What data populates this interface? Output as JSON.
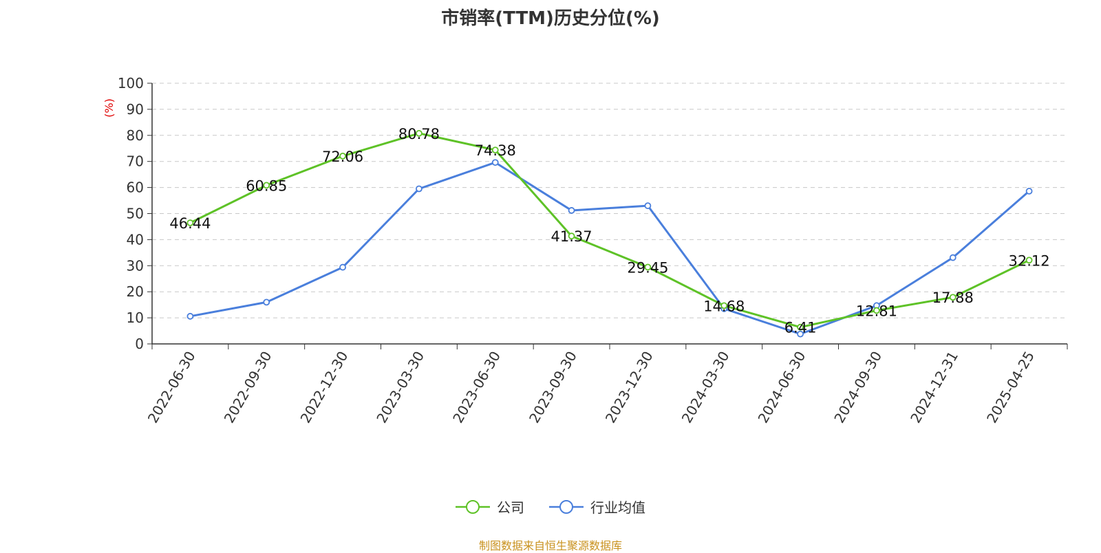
{
  "chart_data": {
    "type": "line",
    "title": "市销率(TTM)历史分位(%)",
    "ylabel": "(%)",
    "xlabel": "",
    "ylim": [
      0,
      100
    ],
    "yticks": [
      0,
      10,
      20,
      30,
      40,
      50,
      60,
      70,
      80,
      90,
      100
    ],
    "grid": true,
    "legend_position": "bottom",
    "categories": [
      "2022-06-30",
      "2022-09-30",
      "2022-12-30",
      "2023-03-30",
      "2023-06-30",
      "2023-09-30",
      "2023-12-30",
      "2024-03-30",
      "2024-06-30",
      "2024-09-30",
      "2024-12-31",
      "2025-04-25"
    ],
    "series": [
      {
        "name": "公司",
        "color": "#5ec227",
        "values": [
          46.44,
          60.85,
          72.06,
          80.78,
          74.38,
          41.37,
          29.45,
          14.68,
          6.41,
          12.81,
          17.88,
          32.12
        ],
        "labels": [
          "46.44",
          "60.85",
          "72.06",
          "80.78",
          "74.38",
          "41.37",
          "29.45",
          "14.68",
          "6.41",
          "12.81",
          "17.88",
          "32.12"
        ]
      },
      {
        "name": "行业均值",
        "color": "#4a7fdc",
        "values": [
          10.6,
          16.0,
          29.4,
          59.5,
          69.6,
          51.2,
          53.0,
          13.5,
          3.8,
          14.7,
          33.1,
          58.6
        ]
      }
    ]
  },
  "legend": [
    {
      "label": "公司",
      "color": "#5ec227"
    },
    {
      "label": "行业均值",
      "color": "#4a7fdc"
    }
  ],
  "source_note": "制图数据来自恒生聚源数据库"
}
